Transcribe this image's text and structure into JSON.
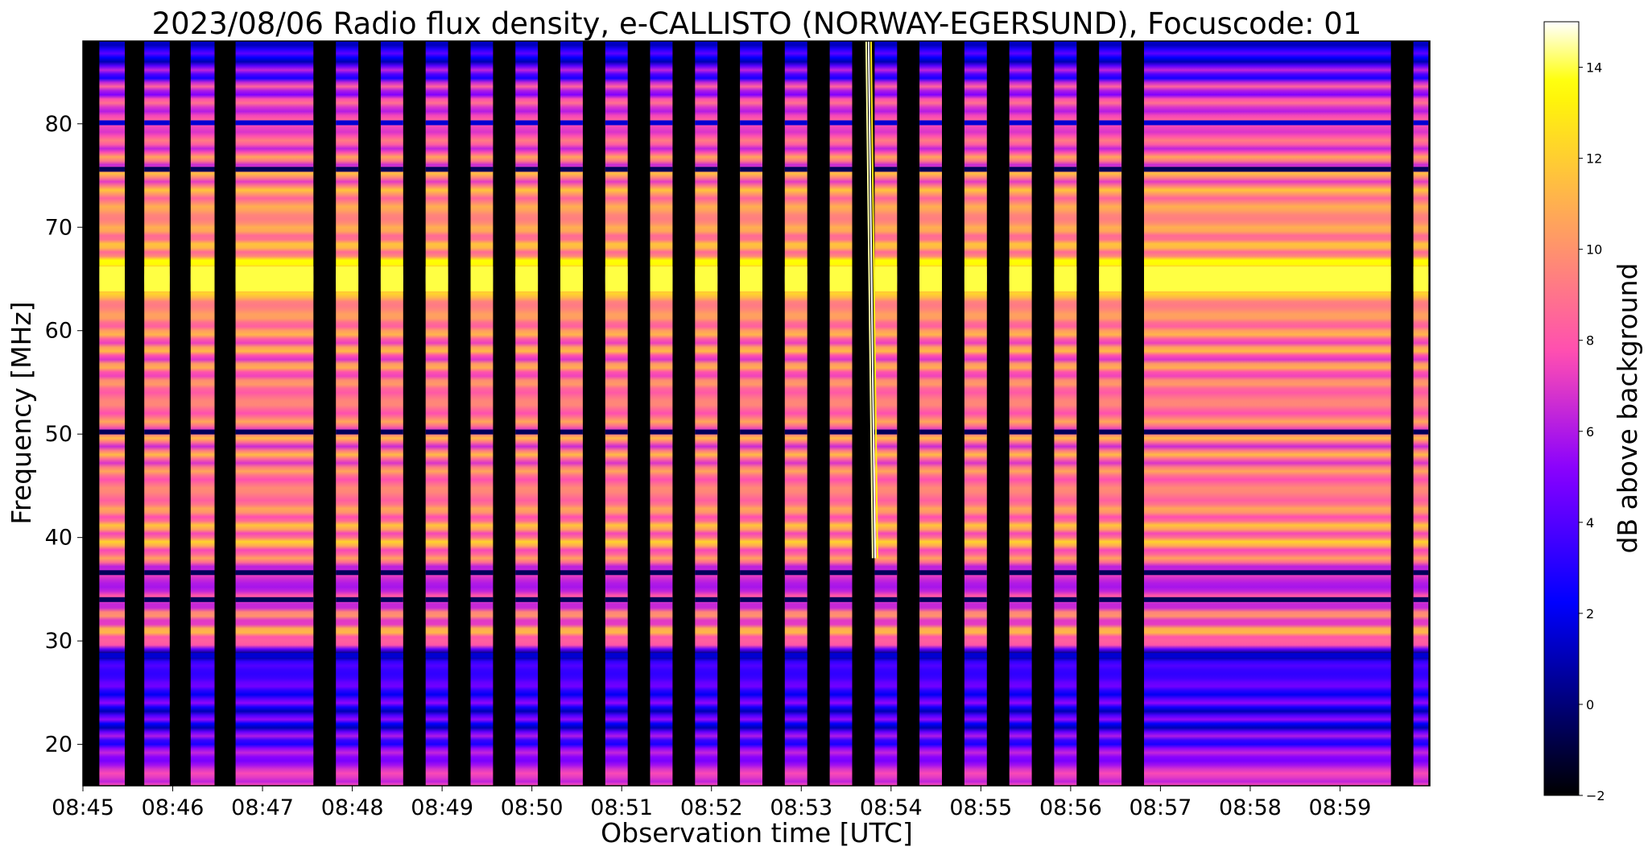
{
  "chart_data": {
    "type": "heatmap",
    "title": "2023/08/06  Radio flux density, e-CALLISTO (NORWAY-EGERSUND), Focuscode: 01",
    "xlabel": "Observation time [UTC]",
    "ylabel": "Frequency [MHz]",
    "x_range": [
      "08:45",
      "09:00"
    ],
    "ylim": [
      16,
      88
    ],
    "x_ticks": [
      "08:45",
      "08:46",
      "08:47",
      "08:48",
      "08:49",
      "08:50",
      "08:51",
      "08:52",
      "08:53",
      "08:54",
      "08:55",
      "08:56",
      "08:57",
      "08:58",
      "08:59"
    ],
    "y_ticks": [
      20,
      30,
      40,
      50,
      60,
      70,
      80
    ],
    "colorbar": {
      "label": "dB above background",
      "range": [
        -2,
        15
      ],
      "ticks": [
        -2,
        0,
        2,
        4,
        6,
        8,
        10,
        12,
        14
      ],
      "colormap": "gnuplot2"
    },
    "data_blocks": [
      [
        "08:45:11",
        "08:45:28"
      ],
      [
        "08:45:41",
        "08:45:58"
      ],
      [
        "08:46:12",
        "08:46:28"
      ],
      [
        "08:46:42",
        "08:47:34"
      ],
      [
        "08:47:49",
        "08:48:04"
      ],
      [
        "08:48:19",
        "08:48:34"
      ],
      [
        "08:48:49",
        "08:49:04"
      ],
      [
        "08:49:19",
        "08:49:34"
      ],
      [
        "08:49:49",
        "08:50:04"
      ],
      [
        "08:50:19",
        "08:50:34"
      ],
      [
        "08:50:49",
        "08:51:04"
      ],
      [
        "08:51:19",
        "08:51:34"
      ],
      [
        "08:51:49",
        "08:52:04"
      ],
      [
        "08:52:19",
        "08:52:34"
      ],
      [
        "08:52:49",
        "08:53:04"
      ],
      [
        "08:53:19",
        "08:53:34"
      ],
      [
        "08:53:49",
        "08:54:04"
      ],
      [
        "08:54:19",
        "08:54:34"
      ],
      [
        "08:54:49",
        "08:55:04"
      ],
      [
        "08:55:19",
        "08:55:34"
      ],
      [
        "08:55:49",
        "08:56:04"
      ],
      [
        "08:56:19",
        "08:56:34"
      ],
      [
        "08:56:49",
        "08:59:34"
      ],
      [
        "08:59:49",
        "08:59:59"
      ]
    ],
    "dark_bands_mhz": [
      80.1,
      75.6,
      50.2,
      36.6,
      34.0,
      28.6
    ],
    "bright_band_mhz": [
      63.8,
      66.2
    ],
    "burst_time": "08:53:45",
    "value_profile_by_frequency": [
      {
        "mhz": 16,
        "db": 8
      },
      {
        "mhz": 18,
        "db": 6
      },
      {
        "mhz": 22,
        "db": 3
      },
      {
        "mhz": 27,
        "db": 4
      },
      {
        "mhz": 29,
        "db": 1
      },
      {
        "mhz": 30,
        "db": 10
      },
      {
        "mhz": 33,
        "db": 8
      },
      {
        "mhz": 36,
        "db": 6
      },
      {
        "mhz": 39,
        "db": 10
      },
      {
        "mhz": 45,
        "db": 9
      },
      {
        "mhz": 50,
        "db": 9
      },
      {
        "mhz": 57,
        "db": 9
      },
      {
        "mhz": 63,
        "db": 10
      },
      {
        "mhz": 65,
        "db": 14
      },
      {
        "mhz": 68,
        "db": 10
      },
      {
        "mhz": 73,
        "db": 10
      },
      {
        "mhz": 78,
        "db": 8
      },
      {
        "mhz": 83,
        "db": 7
      },
      {
        "mhz": 86,
        "db": 3
      },
      {
        "mhz": 88,
        "db": 2
      }
    ],
    "grid": false
  }
}
